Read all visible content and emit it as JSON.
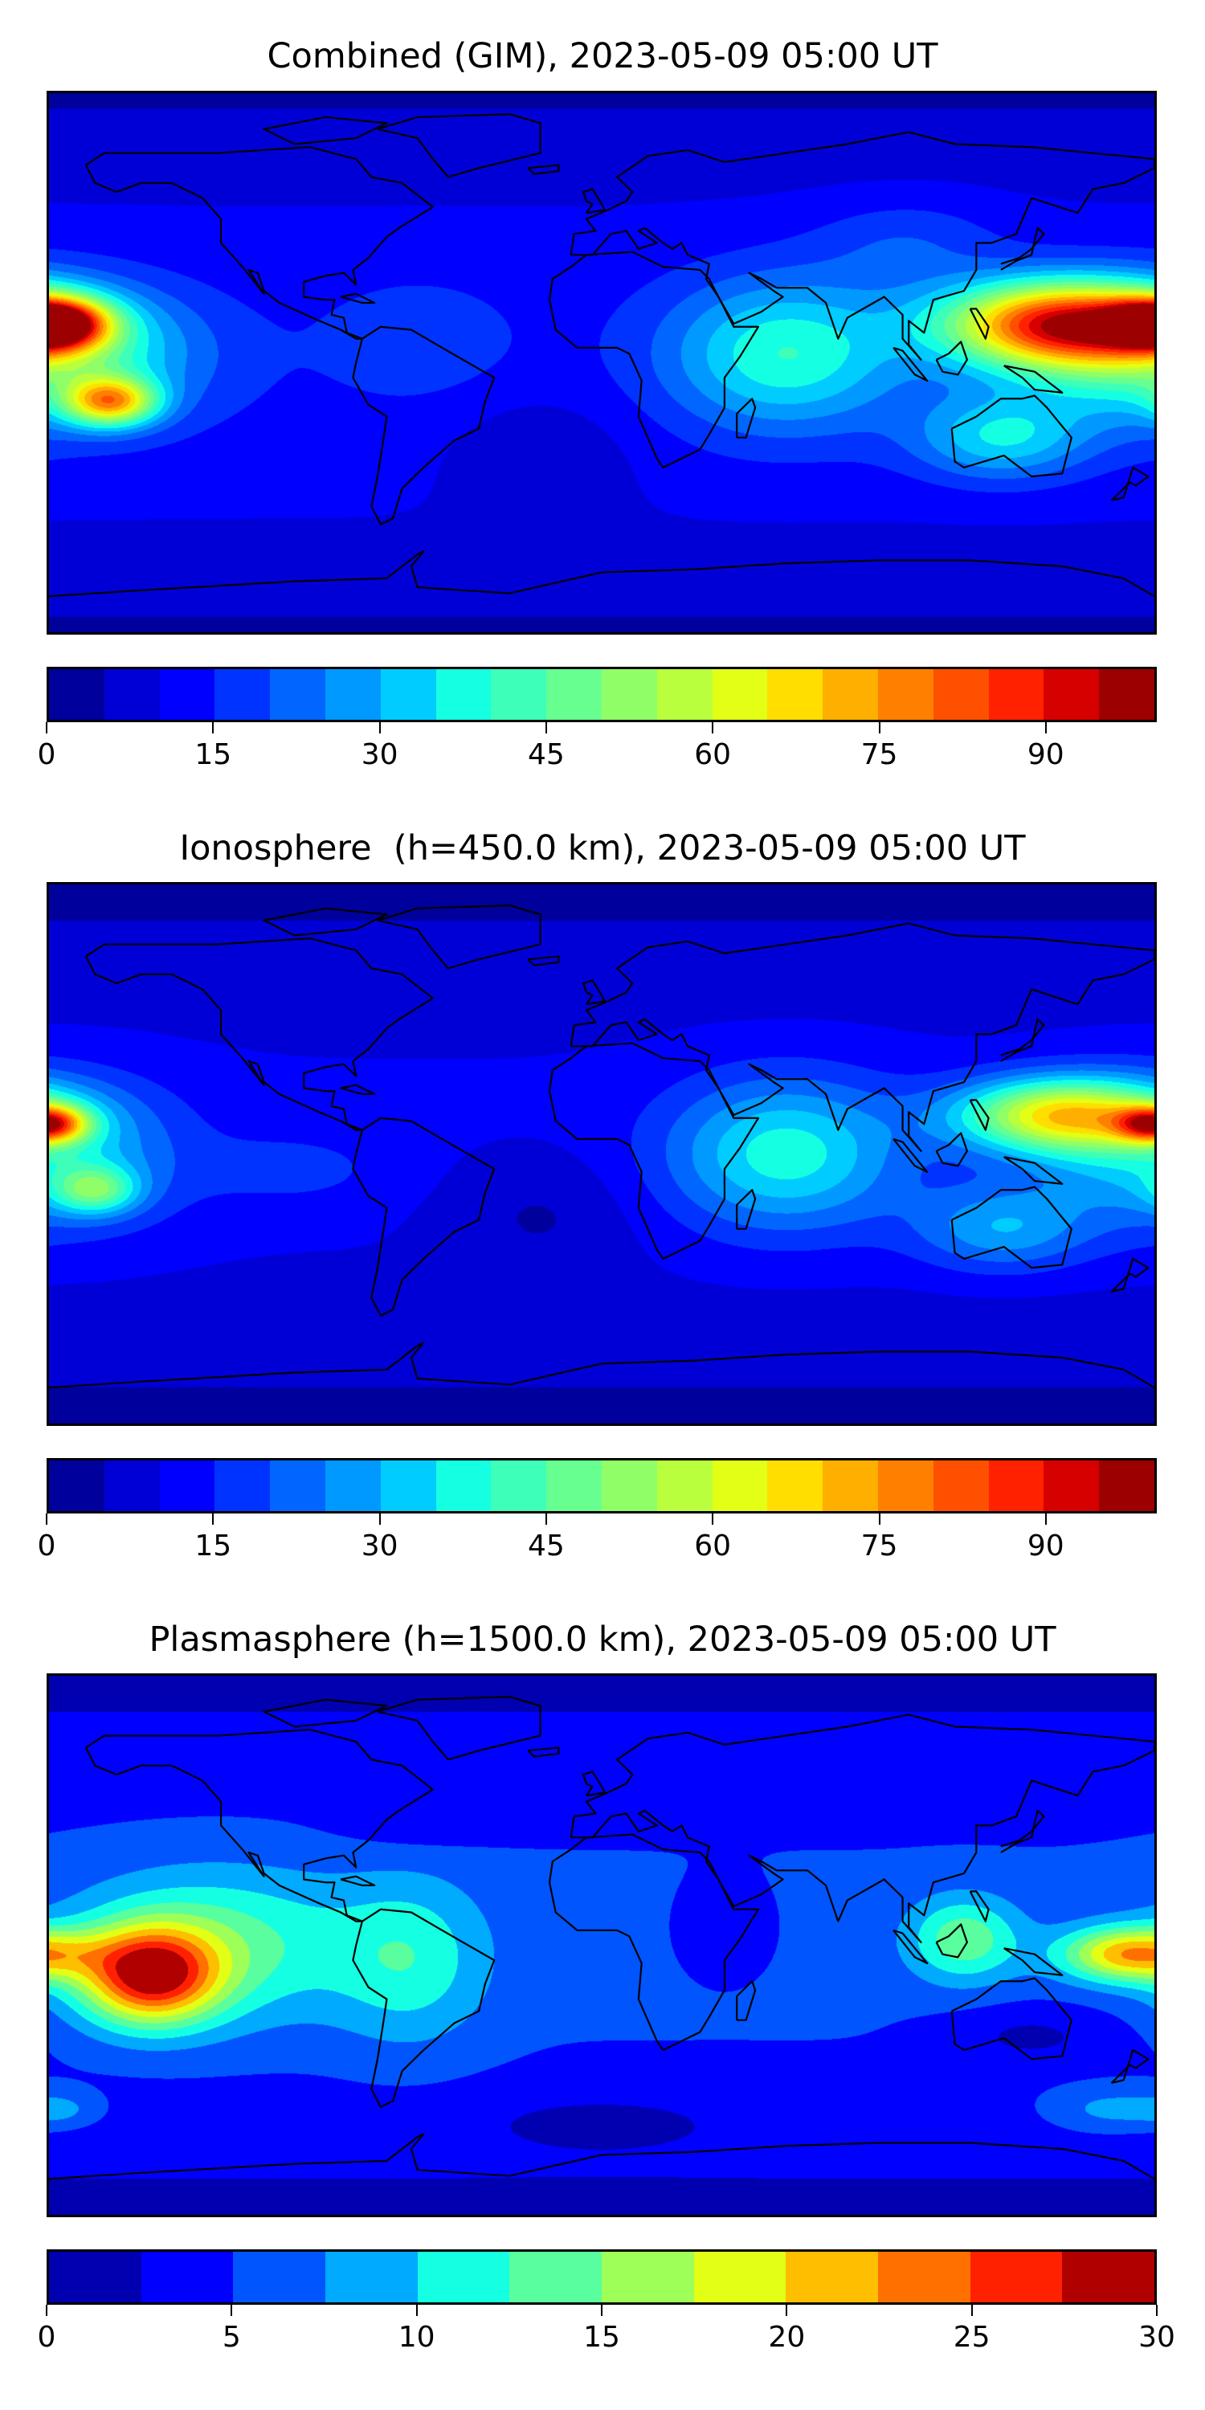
{
  "chart_data": [
    {
      "type": "heatmap",
      "title": "Combined (GIM), 2023-05-09 05:00 UT",
      "colormap": "jet",
      "colorbar": {
        "min": 0,
        "max": 100,
        "step": 5,
        "ticks": [
          "0",
          "15",
          "30",
          "45",
          "60",
          "75",
          "90"
        ],
        "tick_values": [
          0,
          15,
          30,
          45,
          60,
          75,
          90
        ]
      },
      "xlim": [
        -180,
        180
      ],
      "ylim": [
        -90,
        90
      ],
      "features": "filled contours over world coastlines; maxima ~90 near 150E 15N and near 180W 10N, ~70 near 160W 13S; minima ~5 over Antarctica and S. Atlantic"
    },
    {
      "type": "heatmap",
      "title": "Ionosphere  (h=450.0 km), 2023-05-09 05:00 UT",
      "colormap": "jet",
      "colorbar": {
        "min": 0,
        "max": 100,
        "step": 5,
        "ticks": [
          "0",
          "15",
          "30",
          "45",
          "60",
          "75",
          "90"
        ],
        "tick_values": [
          0,
          15,
          30,
          45,
          60,
          75,
          90
        ]
      },
      "xlim": [
        -180,
        180
      ],
      "ylim": [
        -90,
        90
      ],
      "features": "maxima ~70 near 150E 13N and 180W 10N; Indian Ocean ~40; minima ~5 over S. Atlantic / Antarctica"
    },
    {
      "type": "heatmap",
      "title": "Plasmasphere (h=1500.0 km), 2023-05-09 05:00 UT",
      "colormap": "jet",
      "colorbar": {
        "min": 0,
        "max": 30,
        "step": 2.5,
        "ticks": [
          "0",
          "5",
          "10",
          "15",
          "20",
          "25",
          "30"
        ],
        "tick_values": [
          0,
          5,
          10,
          15,
          20,
          25,
          30
        ]
      },
      "xlim": [
        -180,
        180
      ],
      "ylim": [
        -90,
        90
      ],
      "features": "maximum ~28 near 147W 10S; secondary ~23 near 175E 3S; minima ~2 over Antarctica and south of Australia"
    }
  ]
}
